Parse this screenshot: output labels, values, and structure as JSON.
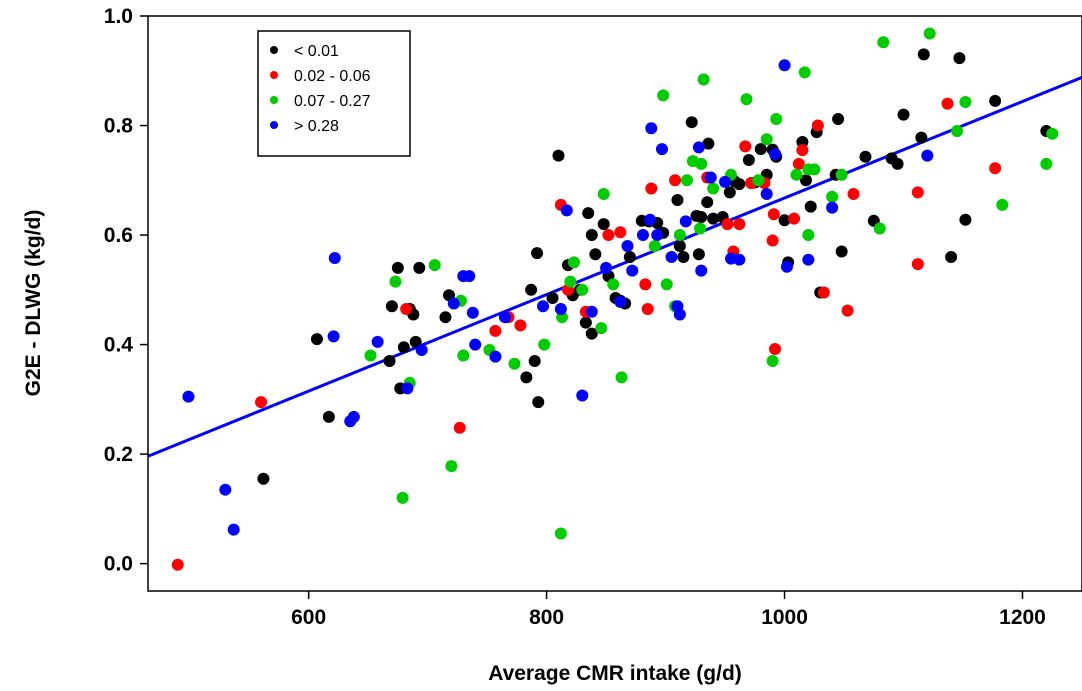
{
  "chart_data": {
    "type": "scatter",
    "title": "",
    "xlabel": "Average  CMR intake (g/d)",
    "ylabel": "G2E - DLWG (kg/d)",
    "xlim": [
      465,
      1250
    ],
    "ylim": [
      -0.05,
      1.0
    ],
    "x_ticks": [
      600,
      800,
      1000,
      1200
    ],
    "x_tick_labels": [
      "600",
      "800",
      "1000",
      "1200"
    ],
    "y_ticks": [
      0.0,
      0.2,
      0.4,
      0.6,
      0.8,
      1.0
    ],
    "y_tick_labels": [
      "0.0",
      "0.2",
      "0.4",
      "0.6",
      "0.8",
      "1.0"
    ],
    "grid": false,
    "legend_position": "top-left",
    "series": [
      {
        "name": "< 0.01",
        "color": "#000000",
        "points": [
          [
            562,
            0.155
          ],
          [
            607,
            0.41
          ],
          [
            617,
            0.268
          ],
          [
            668,
            0.37
          ],
          [
            670,
            0.47
          ],
          [
            675,
            0.54
          ],
          [
            677,
            0.32
          ],
          [
            680,
            0.395
          ],
          [
            685,
            0.465
          ],
          [
            688,
            0.455
          ],
          [
            690,
            0.405
          ],
          [
            693,
            0.54
          ],
          [
            715,
            0.45
          ],
          [
            718,
            0.49
          ],
          [
            783,
            0.34
          ],
          [
            787,
            0.5
          ],
          [
            790,
            0.37
          ],
          [
            792,
            0.567
          ],
          [
            793,
            0.295
          ],
          [
            805,
            0.485
          ],
          [
            810,
            0.745
          ],
          [
            818,
            0.545
          ],
          [
            822,
            0.49
          ],
          [
            828,
            0.5
          ],
          [
            833,
            0.44
          ],
          [
            835,
            0.64
          ],
          [
            838,
            0.42
          ],
          [
            838,
            0.6
          ],
          [
            841,
            0.565
          ],
          [
            848,
            0.62
          ],
          [
            852,
            0.525
          ],
          [
            858,
            0.485
          ],
          [
            862,
            0.48
          ],
          [
            866,
            0.475
          ],
          [
            870,
            0.56
          ],
          [
            880,
            0.626
          ],
          [
            886,
            0.625
          ],
          [
            893,
            0.622
          ],
          [
            898,
            0.604
          ],
          [
            910,
            0.664
          ],
          [
            912,
            0.58
          ],
          [
            915,
            0.56
          ],
          [
            922,
            0.806
          ],
          [
            926,
            0.635
          ],
          [
            928,
            0.565
          ],
          [
            930,
            0.633
          ],
          [
            935,
            0.66
          ],
          [
            936,
            0.767
          ],
          [
            940,
            0.63
          ],
          [
            948,
            0.633
          ],
          [
            954,
            0.678
          ],
          [
            958,
            0.698
          ],
          [
            962,
            0.693
          ],
          [
            970,
            0.737
          ],
          [
            972,
            0.695
          ],
          [
            975,
            0.696
          ],
          [
            980,
            0.757
          ],
          [
            985,
            0.71
          ],
          [
            990,
            0.756
          ],
          [
            993,
            0.743
          ],
          [
            1000,
            0.627
          ],
          [
            1003,
            0.55
          ],
          [
            1015,
            0.77
          ],
          [
            1018,
            0.7
          ],
          [
            1022,
            0.652
          ],
          [
            1027,
            0.788
          ],
          [
            1030,
            0.495
          ],
          [
            1043,
            0.71
          ],
          [
            1045,
            0.812
          ],
          [
            1048,
            0.57
          ],
          [
            1068,
            0.743
          ],
          [
            1075,
            0.626
          ],
          [
            1090,
            0.74
          ],
          [
            1095,
            0.73
          ],
          [
            1100,
            0.82
          ],
          [
            1115,
            0.778
          ],
          [
            1117,
            0.93
          ],
          [
            1140,
            0.56
          ],
          [
            1147,
            0.923
          ],
          [
            1152,
            0.628
          ],
          [
            1177,
            0.845
          ],
          [
            1220,
            0.79
          ]
        ]
      },
      {
        "name": "0.02 - 0.06",
        "color": "#ff0000",
        "points": [
          [
            490,
            -0.002
          ],
          [
            560,
            0.295
          ],
          [
            682,
            0.465
          ],
          [
            727,
            0.248
          ],
          [
            757,
            0.425
          ],
          [
            768,
            0.45
          ],
          [
            778,
            0.435
          ],
          [
            812,
            0.655
          ],
          [
            818,
            0.5
          ],
          [
            833,
            0.46
          ],
          [
            852,
            0.6
          ],
          [
            862,
            0.605
          ],
          [
            883,
            0.51
          ],
          [
            885,
            0.465
          ],
          [
            888,
            0.685
          ],
          [
            908,
            0.7
          ],
          [
            935,
            0.705
          ],
          [
            952,
            0.62
          ],
          [
            957,
            0.57
          ],
          [
            962,
            0.62
          ],
          [
            967,
            0.762
          ],
          [
            972,
            0.695
          ],
          [
            983,
            0.695
          ],
          [
            990,
            0.59
          ],
          [
            991,
            0.638
          ],
          [
            992,
            0.392
          ],
          [
            1008,
            0.63
          ],
          [
            1012,
            0.73
          ],
          [
            1015,
            0.755
          ],
          [
            1028,
            0.8
          ],
          [
            1033,
            0.495
          ],
          [
            1053,
            0.462
          ],
          [
            1058,
            0.675
          ],
          [
            1112,
            0.547
          ],
          [
            1112,
            0.678
          ],
          [
            1137,
            0.84
          ],
          [
            1177,
            0.722
          ]
        ]
      },
      {
        "name": "0.07 - 0.27",
        "color": "#00cc00",
        "points": [
          [
            652,
            0.38
          ],
          [
            673,
            0.515
          ],
          [
            679,
            0.12
          ],
          [
            685,
            0.33
          ],
          [
            706,
            0.545
          ],
          [
            720,
            0.178
          ],
          [
            728,
            0.48
          ],
          [
            730,
            0.38
          ],
          [
            752,
            0.39
          ],
          [
            773,
            0.365
          ],
          [
            798,
            0.4
          ],
          [
            812,
            0.055
          ],
          [
            813,
            0.45
          ],
          [
            820,
            0.515
          ],
          [
            823,
            0.55
          ],
          [
            830,
            0.5
          ],
          [
            846,
            0.43
          ],
          [
            848,
            0.675
          ],
          [
            856,
            0.51
          ],
          [
            863,
            0.34
          ],
          [
            891,
            0.58
          ],
          [
            898,
            0.855
          ],
          [
            901,
            0.51
          ],
          [
            908,
            0.47
          ],
          [
            912,
            0.6
          ],
          [
            918,
            0.7
          ],
          [
            923,
            0.735
          ],
          [
            929,
            0.612
          ],
          [
            930,
            0.73
          ],
          [
            932,
            0.884
          ],
          [
            940,
            0.685
          ],
          [
            955,
            0.71
          ],
          [
            968,
            0.848
          ],
          [
            978,
            0.7
          ],
          [
            985,
            0.775
          ],
          [
            990,
            0.37
          ],
          [
            993,
            0.812
          ],
          [
            1010,
            0.71
          ],
          [
            1020,
            0.72
          ],
          [
            1017,
            0.897
          ],
          [
            1020,
            0.6
          ],
          [
            1025,
            0.72
          ],
          [
            1040,
            0.67
          ],
          [
            1048,
            0.71
          ],
          [
            1080,
            0.612
          ],
          [
            1083,
            0.952
          ],
          [
            1122,
            0.968
          ],
          [
            1145,
            0.79
          ],
          [
            1152,
            0.843
          ],
          [
            1183,
            0.655
          ],
          [
            1220,
            0.73
          ],
          [
            1225,
            0.785
          ]
        ]
      },
      {
        "name": "> 0.28",
        "color": "#0000ff",
        "points": [
          [
            499,
            0.305
          ],
          [
            530,
            0.135
          ],
          [
            537,
            0.062
          ],
          [
            621,
            0.415
          ],
          [
            622,
            0.558
          ],
          [
            635,
            0.26
          ],
          [
            638,
            0.268
          ],
          [
            658,
            0.405
          ],
          [
            683,
            0.32
          ],
          [
            695,
            0.39
          ],
          [
            722,
            0.475
          ],
          [
            730,
            0.525
          ],
          [
            735,
            0.525
          ],
          [
            738,
            0.458
          ],
          [
            740,
            0.4
          ],
          [
            757,
            0.378
          ],
          [
            765,
            0.45
          ],
          [
            797,
            0.47
          ],
          [
            812,
            0.465
          ],
          [
            817,
            0.645
          ],
          [
            830,
            0.307
          ],
          [
            838,
            0.46
          ],
          [
            850,
            0.54
          ],
          [
            862,
            0.478
          ],
          [
            868,
            0.58
          ],
          [
            872,
            0.535
          ],
          [
            881,
            0.6
          ],
          [
            887,
            0.628
          ],
          [
            888,
            0.795
          ],
          [
            893,
            0.6
          ],
          [
            897,
            0.757
          ],
          [
            905,
            0.56
          ],
          [
            910,
            0.47
          ],
          [
            912,
            0.455
          ],
          [
            917,
            0.625
          ],
          [
            928,
            0.76
          ],
          [
            930,
            0.535
          ],
          [
            938,
            0.705
          ],
          [
            950,
            0.697
          ],
          [
            955,
            0.557
          ],
          [
            962,
            0.555
          ],
          [
            985,
            0.675
          ],
          [
            992,
            0.748
          ],
          [
            1000,
            0.91
          ],
          [
            1002,
            0.542
          ],
          [
            1020,
            0.555
          ],
          [
            1040,
            0.65
          ],
          [
            1120,
            0.745
          ]
        ]
      }
    ],
    "fit_line": {
      "type": "linear regression",
      "color": "#0000ff",
      "x": [
        465,
        1250
      ],
      "y": [
        0.196,
        0.888
      ]
    }
  }
}
